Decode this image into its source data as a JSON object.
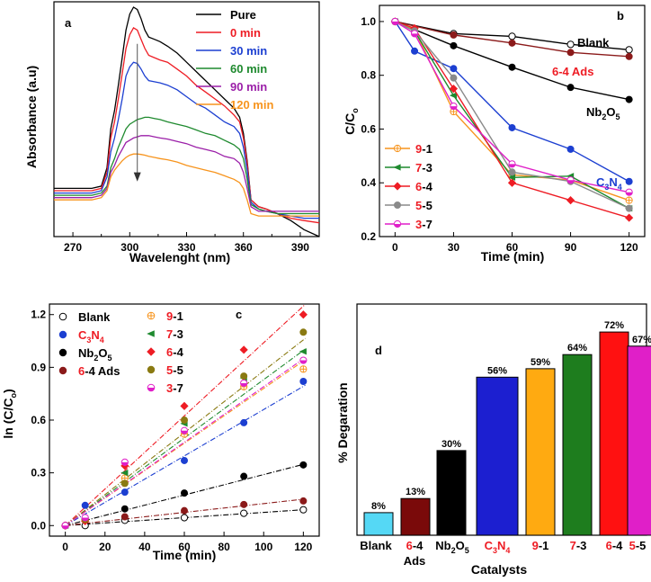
{
  "chart_data": [
    {
      "panel": "a",
      "type": "line",
      "title": "",
      "xlabel": "Wavelenght (nm)",
      "ylabel": "Absorbance (a.u)",
      "xlim": [
        260,
        400
      ],
      "ylim": [
        0,
        1
      ],
      "xticks": [
        "270",
        "300",
        "330",
        "360",
        "390"
      ],
      "arrow_at": 304,
      "series": [
        {
          "name": "Pure",
          "color": "#000000",
          "peak": 1.0,
          "drop": 0.0,
          "x": [
            260,
            270,
            280,
            285,
            288,
            290,
            292,
            294,
            296,
            298,
            300,
            302,
            304,
            306,
            308,
            310,
            313,
            316,
            320,
            325,
            330,
            335,
            340,
            345,
            350,
            355,
            358,
            360,
            362,
            364,
            368,
            372,
            378,
            385,
            392,
            400
          ],
          "y": [
            0.21,
            0.21,
            0.21,
            0.22,
            0.3,
            0.47,
            0.55,
            0.66,
            0.78,
            0.9,
            0.97,
            1.0,
            0.99,
            0.95,
            0.9,
            0.87,
            0.86,
            0.85,
            0.83,
            0.8,
            0.76,
            0.72,
            0.68,
            0.64,
            0.6,
            0.56,
            0.52,
            0.45,
            0.33,
            0.16,
            0.13,
            0.12,
            0.1,
            0.07,
            0.03,
            0.0
          ]
        },
        {
          "name": "0 min",
          "color": "#ee1c24",
          "peak": 0.91,
          "drop": 0.0,
          "x": [
            260,
            270,
            280,
            285,
            288,
            290,
            292,
            294,
            296,
            298,
            300,
            302,
            304,
            306,
            308,
            310,
            313,
            316,
            320,
            325,
            330,
            335,
            340,
            345,
            350,
            355,
            358,
            360,
            362,
            364,
            368,
            372,
            378,
            385,
            392,
            400
          ],
          "y": [
            0.2,
            0.2,
            0.2,
            0.21,
            0.28,
            0.43,
            0.5,
            0.6,
            0.71,
            0.82,
            0.88,
            0.91,
            0.9,
            0.86,
            0.82,
            0.79,
            0.78,
            0.77,
            0.76,
            0.73,
            0.7,
            0.66,
            0.63,
            0.6,
            0.57,
            0.53,
            0.5,
            0.43,
            0.32,
            0.16,
            0.13,
            0.12,
            0.1,
            0.08,
            0.07,
            0.06
          ]
        },
        {
          "name": "30 min",
          "color": "#1c3fd1",
          "peak": 0.76,
          "drop": 0.0,
          "x": [
            260,
            270,
            280,
            285,
            288,
            290,
            292,
            294,
            296,
            298,
            300,
            302,
            304,
            306,
            308,
            310,
            313,
            316,
            320,
            325,
            330,
            335,
            340,
            345,
            350,
            355,
            358,
            360,
            362,
            364,
            368,
            372,
            378,
            385,
            392,
            400
          ],
          "y": [
            0.19,
            0.19,
            0.19,
            0.2,
            0.26,
            0.37,
            0.43,
            0.51,
            0.6,
            0.7,
            0.74,
            0.76,
            0.755,
            0.73,
            0.7,
            0.68,
            0.675,
            0.67,
            0.66,
            0.64,
            0.61,
            0.58,
            0.56,
            0.53,
            0.5,
            0.48,
            0.45,
            0.39,
            0.29,
            0.15,
            0.12,
            0.11,
            0.1,
            0.09,
            0.08,
            0.08
          ]
        },
        {
          "name": "60 min",
          "color": "#1f8a2f",
          "peak": 0.52,
          "drop": 0.0,
          "x": [
            260,
            270,
            280,
            285,
            288,
            290,
            292,
            294,
            296,
            298,
            300,
            302,
            304,
            306,
            308,
            310,
            313,
            316,
            320,
            325,
            330,
            335,
            340,
            345,
            350,
            355,
            358,
            360,
            362,
            364,
            368,
            372,
            378,
            385,
            392,
            400
          ],
          "y": [
            0.18,
            0.18,
            0.18,
            0.19,
            0.22,
            0.3,
            0.34,
            0.39,
            0.43,
            0.47,
            0.49,
            0.5,
            0.51,
            0.515,
            0.52,
            0.52,
            0.515,
            0.51,
            0.5,
            0.49,
            0.48,
            0.465,
            0.45,
            0.44,
            0.42,
            0.4,
            0.38,
            0.34,
            0.25,
            0.14,
            0.12,
            0.11,
            0.1,
            0.1,
            0.1,
            0.1
          ]
        },
        {
          "name": "90 min",
          "color": "#9b1fa8",
          "peak": 0.44,
          "drop": 0.0,
          "x": [
            260,
            270,
            280,
            285,
            288,
            290,
            292,
            294,
            296,
            298,
            300,
            302,
            304,
            306,
            308,
            310,
            313,
            316,
            320,
            325,
            330,
            335,
            340,
            345,
            350,
            355,
            358,
            360,
            362,
            364,
            368,
            372,
            378,
            385,
            392,
            400
          ],
          "y": [
            0.17,
            0.17,
            0.17,
            0.18,
            0.21,
            0.28,
            0.31,
            0.35,
            0.38,
            0.41,
            0.42,
            0.43,
            0.435,
            0.44,
            0.44,
            0.44,
            0.435,
            0.43,
            0.425,
            0.415,
            0.405,
            0.39,
            0.38,
            0.37,
            0.35,
            0.34,
            0.32,
            0.28,
            0.21,
            0.13,
            0.11,
            0.11,
            0.11,
            0.11,
            0.11,
            0.11
          ]
        },
        {
          "name": "120 min",
          "color": "#f7941d",
          "peak": 0.36,
          "drop": 0.0,
          "x": [
            260,
            270,
            280,
            285,
            288,
            290,
            292,
            294,
            296,
            298,
            300,
            302,
            304,
            306,
            308,
            310,
            313,
            316,
            320,
            325,
            330,
            335,
            340,
            345,
            350,
            355,
            358,
            360,
            362,
            364,
            368,
            372,
            378,
            385,
            392,
            400
          ],
          "y": [
            0.16,
            0.16,
            0.16,
            0.17,
            0.2,
            0.26,
            0.29,
            0.31,
            0.33,
            0.345,
            0.355,
            0.36,
            0.36,
            0.358,
            0.355,
            0.35,
            0.345,
            0.34,
            0.335,
            0.325,
            0.31,
            0.3,
            0.29,
            0.28,
            0.265,
            0.25,
            0.235,
            0.21,
            0.16,
            0.1,
            0.09,
            0.09,
            0.09,
            0.09,
            0.09,
            0.09
          ]
        }
      ]
    },
    {
      "panel": "b",
      "type": "line",
      "xlabel": "Time (min)",
      "ylabel": "C/C",
      "ylabel_sub": "o",
      "xlim": [
        -8,
        128
      ],
      "ylim": [
        0.2,
        1.06
      ],
      "xticks": [
        0,
        30,
        60,
        90,
        120
      ],
      "yticks": [
        0.2,
        0.4,
        0.6,
        0.8,
        1.0
      ],
      "ytick_labels": [
        "0.2",
        "0.4",
        "0.6",
        "0.8",
        "1.0"
      ],
      "x": [
        0,
        10,
        30,
        60,
        90,
        120
      ],
      "series": [
        {
          "name": "Blank",
          "color": "#000000",
          "marker": "open-circle",
          "values": [
            1.0,
            null,
            0.955,
            0.945,
            0.915,
            0.895
          ]
        },
        {
          "name": "6-4 Ads",
          "color": "#8b1a1a",
          "marker": "circle",
          "values": [
            1.0,
            null,
            0.95,
            0.92,
            0.885,
            0.87
          ]
        },
        {
          "name": "Nb2O5",
          "color": "#000000",
          "marker": "circle",
          "values": [
            1.0,
            null,
            0.91,
            0.83,
            0.755,
            0.71
          ]
        },
        {
          "name": "C3N4",
          "color": "#1c3fd1",
          "marker": "circle",
          "values": [
            1.0,
            0.89,
            0.825,
            0.605,
            0.525,
            0.405
          ]
        },
        {
          "name": "9-1",
          "color": "#f7941d",
          "marker": "open-cross",
          "values": [
            1.0,
            0.97,
            0.665,
            0.43,
            0.41,
            0.335
          ]
        },
        {
          "name": "7-3",
          "color": "#1f8a2f",
          "marker": "triangle-left",
          "values": [
            1.0,
            0.965,
            0.725,
            0.42,
            0.425,
            0.305
          ]
        },
        {
          "name": "6-4",
          "color": "#ee1c24",
          "marker": "diamond",
          "values": [
            1.0,
            0.975,
            0.75,
            0.4,
            0.335,
            0.27
          ]
        },
        {
          "name": "5-5",
          "color": "#8a8a8a",
          "marker": "circle",
          "values": [
            1.0,
            0.965,
            0.79,
            0.44,
            0.405,
            0.305
          ]
        },
        {
          "name": "3-7",
          "color": "#e01fc8",
          "marker": "half-circle",
          "values": [
            1.0,
            0.955,
            0.685,
            0.47,
            0.41,
            0.365
          ]
        }
      ],
      "inline_labels": [
        "Blank",
        "6-4 Ads",
        "Nb",
        "2",
        "O",
        "5",
        "C",
        "3",
        "N",
        "4"
      ],
      "legend": [
        "9",
        "-1",
        "7",
        "-3",
        "6",
        "-4",
        "5",
        "-5",
        "3",
        "-7"
      ]
    },
    {
      "panel": "c",
      "type": "scatter",
      "xlabel": "Time (min)",
      "ylabel": "ln (C/C",
      "ylabel_sub": "o",
      "ylabel_end": ")",
      "xlim": [
        -8,
        128
      ],
      "ylim": [
        -0.06,
        1.26
      ],
      "xticks": [
        0,
        20,
        40,
        60,
        80,
        100,
        120
      ],
      "yticks": [
        0.0,
        0.3,
        0.6,
        0.9,
        1.2
      ],
      "ytick_labels": [
        "0.0",
        "0.3",
        "0.6",
        "0.9",
        "1.2"
      ],
      "x": [
        0,
        10,
        30,
        60,
        90,
        120
      ],
      "series": [
        {
          "name": "Blank",
          "color": "#000000",
          "marker": "open-circle",
          "values": [
            0.0,
            0.0,
            0.03,
            0.045,
            0.07,
            0.09
          ],
          "fit_slope": 0.00075
        },
        {
          "name": "C3N4",
          "color": "#1c3fd1",
          "marker": "circle",
          "values": [
            0.0,
            0.115,
            0.19,
            0.37,
            0.585,
            0.82
          ],
          "fit_slope": 0.0066
        },
        {
          "name": "Nb2O5",
          "color": "#000000",
          "marker": "circle",
          "values": [
            0.0,
            0.04,
            0.095,
            0.185,
            0.28,
            0.345
          ],
          "fit_slope": 0.0029
        },
        {
          "name": "6-4 Ads",
          "color": "#8b1a1a",
          "marker": "circle",
          "values": [
            0.0,
            0.03,
            0.05,
            0.085,
            0.12,
            0.14
          ],
          "fit_slope": 0.00125
        },
        {
          "name": "9-1",
          "color": "#f7941d",
          "marker": "open-cross",
          "values": [
            0.0,
            0.03,
            0.27,
            0.52,
            0.79,
            0.89
          ],
          "fit_slope": 0.0078
        },
        {
          "name": "7-3",
          "color": "#1f8a2f",
          "marker": "triangle-left",
          "values": [
            0.0,
            0.035,
            0.3,
            0.58,
            0.84,
            0.99
          ],
          "fit_slope": 0.0083
        },
        {
          "name": "6-4",
          "color": "#ee1c24",
          "marker": "diamond",
          "values": [
            0.0,
            0.025,
            0.34,
            0.68,
            1.0,
            1.2
          ],
          "fit_slope": 0.0104
        },
        {
          "name": "5-5",
          "color": "#8a7a12",
          "marker": "circle",
          "values": [
            0.0,
            0.035,
            0.24,
            0.6,
            0.85,
            1.1
          ],
          "fit_slope": 0.0088
        },
        {
          "name": "3-7",
          "color": "#e01fc8",
          "marker": "half-circle",
          "values": [
            0.0,
            0.045,
            0.36,
            0.54,
            0.81,
            0.94
          ],
          "fit_slope": 0.0079
        }
      ],
      "legend": [
        "Blank",
        "C",
        "3",
        "N",
        "4",
        "Nb",
        "2",
        "O",
        "5",
        "6",
        "-4 Ads",
        "9",
        "-1",
        "7",
        "-3",
        "6",
        "-4",
        "5",
        "-5",
        "3",
        "-7"
      ]
    },
    {
      "panel": "d",
      "type": "bar",
      "xlabel": "Catalysts",
      "ylabel": "% Degaration",
      "ylim": [
        0,
        80
      ],
      "categories": [
        "Blank",
        "6-4 Ads",
        "Nb2O5",
        "C3N4",
        "9-1",
        "7-3",
        "6-4",
        "5-5"
      ],
      "values": [
        8,
        13,
        30,
        56,
        59,
        64,
        72,
        67
      ],
      "value_labels": [
        "8%",
        "13%",
        "30%",
        "56%",
        "59%",
        "64%",
        "72%",
        "67%"
      ],
      "colors": [
        "#55d8f5",
        "#7a0a0a",
        "#000000",
        "#1c1fd0",
        "#ffaa11",
        "#1e7d1e",
        "#ff1111",
        "#e01fc8"
      ],
      "tick_parts": [
        "Blank",
        "6",
        "-4",
        "Ads",
        "Nb",
        "2",
        "O",
        "5",
        "C",
        "3",
        "N",
        "4",
        "9",
        "-1",
        "7",
        "-3",
        "6",
        "-4",
        "5",
        "-5"
      ]
    }
  ],
  "panels": {
    "a": "a",
    "b": "b",
    "c": "c",
    "d": "d"
  }
}
